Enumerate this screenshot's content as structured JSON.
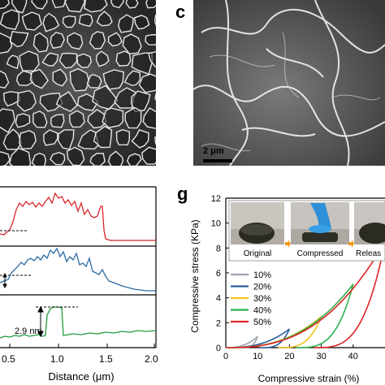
{
  "panels": {
    "c": {
      "letter": "c",
      "scale_bar": "2 μm"
    },
    "g": {
      "letter": "g"
    }
  },
  "profile_panel": {
    "xlabel": "Distance (μm)",
    "xticks": [
      "0.5",
      "1.0",
      "1.5",
      "2.0"
    ],
    "annotation": "2.9 nm",
    "colors": {
      "red": "#d9262c",
      "blue": "#2a6aa4",
      "green": "#1f9a3c"
    }
  },
  "inset_photos": {
    "labels": [
      "Original",
      "Compressed",
      "Releas"
    ]
  },
  "chart_data": {
    "type": "line",
    "xlabel": "Compressive strain (%)",
    "ylabel": "Compressive stress (KPa)",
    "xlim": [
      0,
      50
    ],
    "ylim": [
      0,
      12
    ],
    "yticks": [
      "0",
      "2",
      "4",
      "6",
      "8",
      "10",
      "12"
    ],
    "xticks": [
      "0",
      "10",
      "20",
      "30",
      "40"
    ],
    "legend_position": "bottom-left",
    "series": [
      {
        "name": "10%",
        "color": "#9aa3ae",
        "max_strain": 10,
        "max_stress": 0.9
      },
      {
        "name": "20%",
        "color": "#2d5e9e",
        "max_strain": 20,
        "max_stress": 1.5
      },
      {
        "name": "30%",
        "color": "#f2c21b",
        "max_strain": 30,
        "max_stress": 2.5
      },
      {
        "name": "40%",
        "color": "#2db04b",
        "max_strain": 40,
        "max_stress": 5.1
      },
      {
        "name": "50%",
        "color": "#e02424",
        "max_strain": 50,
        "max_stress": 8.5
      }
    ]
  }
}
